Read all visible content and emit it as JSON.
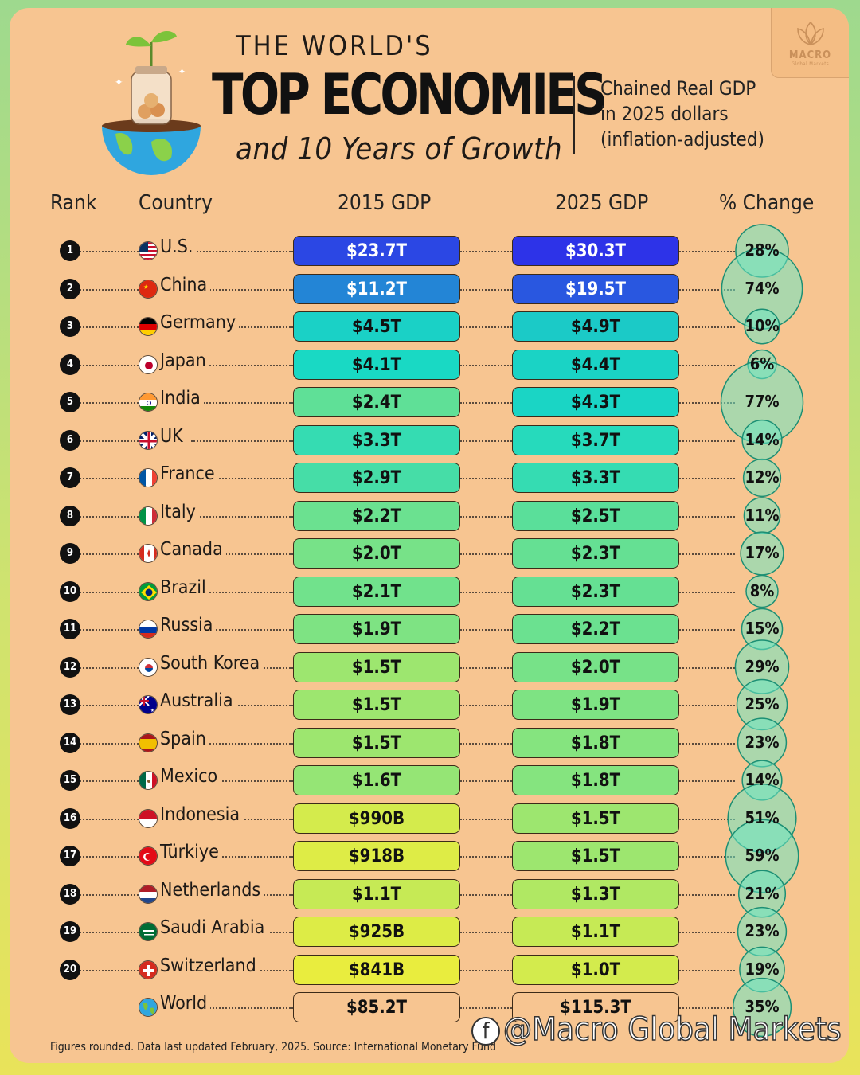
{
  "title": {
    "line1": "THE WORLD'S",
    "line2": "TOP ECONOMIES",
    "line3": "and 10 Years of Growth"
  },
  "subtitle": "Chained Real GDP\nin 2025 dollars\n(inflation-adjusted)",
  "logo": {
    "brand": "MACRO",
    "sub": "Global Markets"
  },
  "headers": {
    "rank": "Rank",
    "country": "Country",
    "gdp2015": "2015 GDP",
    "gdp2025": "2025 GDP",
    "change": "% Change"
  },
  "footnote": "Figures rounded. Data last updated February, 2025. Source: International Monetary Fund",
  "watermark": "@Macro Global Markets",
  "watermark_icon": "f",
  "chart_data": {
    "type": "table",
    "columns": [
      "Rank",
      "Country",
      "2015 GDP",
      "2025 GDP",
      "% Change"
    ],
    "rows": [
      {
        "rank": "1",
        "country": "U.S.",
        "gdp2015": "$23.7T",
        "gdp2025": "$30.3T",
        "change": "28%",
        "change_value": 28,
        "flag": "us-flag-icon"
      },
      {
        "rank": "2",
        "country": "China",
        "gdp2015": "$11.2T",
        "gdp2025": "$19.5T",
        "change": "74%",
        "change_value": 74,
        "flag": "china-flag-icon"
      },
      {
        "rank": "3",
        "country": "Germany",
        "gdp2015": "$4.5T",
        "gdp2025": "$4.9T",
        "change": "10%",
        "change_value": 10,
        "flag": "germany-flag-icon"
      },
      {
        "rank": "4",
        "country": "Japan",
        "gdp2015": "$4.1T",
        "gdp2025": "$4.4T",
        "change": "6%",
        "change_value": 6,
        "flag": "japan-flag-icon"
      },
      {
        "rank": "5",
        "country": "India",
        "gdp2015": "$2.4T",
        "gdp2025": "$4.3T",
        "change": "77%",
        "change_value": 77,
        "flag": "india-flag-icon"
      },
      {
        "rank": "6",
        "country": "UK",
        "gdp2015": "$3.3T",
        "gdp2025": "$3.7T",
        "change": "14%",
        "change_value": 14,
        "flag": "uk-flag-icon"
      },
      {
        "rank": "7",
        "country": "France",
        "gdp2015": "$2.9T",
        "gdp2025": "$3.3T",
        "change": "12%",
        "change_value": 12,
        "flag": "france-flag-icon"
      },
      {
        "rank": "8",
        "country": "Italy",
        "gdp2015": "$2.2T",
        "gdp2025": "$2.5T",
        "change": "11%",
        "change_value": 11,
        "flag": "italy-flag-icon"
      },
      {
        "rank": "9",
        "country": "Canada",
        "gdp2015": "$2.0T",
        "gdp2025": "$2.3T",
        "change": "17%",
        "change_value": 17,
        "flag": "canada-flag-icon"
      },
      {
        "rank": "10",
        "country": "Brazil",
        "gdp2015": "$2.1T",
        "gdp2025": "$2.3T",
        "change": "8%",
        "change_value": 8,
        "flag": "brazil-flag-icon"
      },
      {
        "rank": "11",
        "country": "Russia",
        "gdp2015": "$1.9T",
        "gdp2025": "$2.2T",
        "change": "15%",
        "change_value": 15,
        "flag": "russia-flag-icon"
      },
      {
        "rank": "12",
        "country": "South Korea",
        "gdp2015": "$1.5T",
        "gdp2025": "$2.0T",
        "change": "29%",
        "change_value": 29,
        "flag": "south-korea-flag-icon"
      },
      {
        "rank": "13",
        "country": "Australia",
        "gdp2015": "$1.5T",
        "gdp2025": "$1.9T",
        "change": "25%",
        "change_value": 25,
        "flag": "australia-flag-icon"
      },
      {
        "rank": "14",
        "country": "Spain",
        "gdp2015": "$1.5T",
        "gdp2025": "$1.8T",
        "change": "23%",
        "change_value": 23,
        "flag": "spain-flag-icon"
      },
      {
        "rank": "15",
        "country": "Mexico",
        "gdp2015": "$1.6T",
        "gdp2025": "$1.8T",
        "change": "14%",
        "change_value": 14,
        "flag": "mexico-flag-icon"
      },
      {
        "rank": "16",
        "country": "Indonesia",
        "gdp2015": "$990B",
        "gdp2025": "$1.5T",
        "change": "51%",
        "change_value": 51,
        "flag": "indonesia-flag-icon"
      },
      {
        "rank": "17",
        "country": "Türkiye",
        "gdp2015": "$918B",
        "gdp2025": "$1.5T",
        "change": "59%",
        "change_value": 59,
        "flag": "turkiye-flag-icon"
      },
      {
        "rank": "18",
        "country": "Netherlands",
        "gdp2015": "$1.1T",
        "gdp2025": "$1.3T",
        "change": "21%",
        "change_value": 21,
        "flag": "netherlands-flag-icon"
      },
      {
        "rank": "19",
        "country": "Saudi Arabia",
        "gdp2015": "$925B",
        "gdp2025": "$1.1T",
        "change": "23%",
        "change_value": 23,
        "flag": "saudi-arabia-flag-icon"
      },
      {
        "rank": "20",
        "country": "Switzerland",
        "gdp2015": "$841B",
        "gdp2025": "$1.0T",
        "change": "19%",
        "change_value": 19,
        "flag": "switzerland-flag-icon"
      },
      {
        "rank": "",
        "country": "World",
        "gdp2015": "$85.2T",
        "gdp2025": "$115.3T",
        "change": "35%",
        "change_value": 35,
        "flag": "globe-icon"
      }
    ],
    "colors": {
      "gdp_scale_high": "#2d33e8",
      "gdp_scale_mid": "#19d9c4",
      "gdp_scale_low": "#f0ee3a",
      "bubble_fill": "#6ee6c3",
      "world_bar": "#f7c591"
    }
  }
}
